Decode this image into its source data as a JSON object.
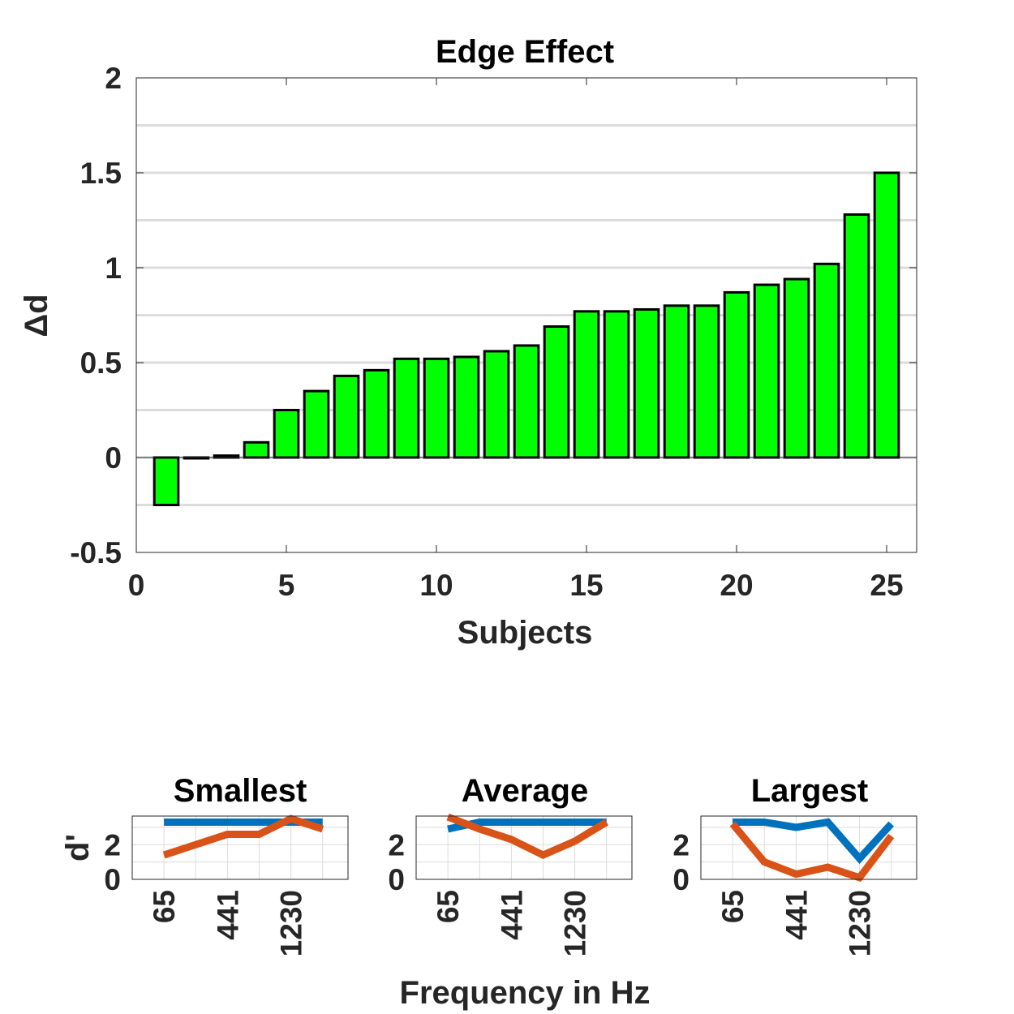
{
  "colors": {
    "bar_fill": "#00ff00",
    "bar_edge": "#000000",
    "grid": "#dcdcdc",
    "series_blue": "#0072bd",
    "series_orange": "#d95319",
    "text": "#262626"
  },
  "figure": {
    "shared_xlabel": "Frequency in Hz"
  },
  "chart_data": [
    {
      "type": "bar",
      "title": "Edge Effect",
      "xlabel": "Subjects",
      "ylabel": "Δd",
      "xlim": [
        0,
        26
      ],
      "ylim": [
        -0.5,
        2
      ],
      "xticks": [
        0,
        5,
        10,
        15,
        20,
        25
      ],
      "xtick_labels": [
        "0",
        "5",
        "10",
        "15",
        "20",
        "25"
      ],
      "yticks": [
        -0.5,
        0,
        0.5,
        1,
        1.5,
        2
      ],
      "ytick_labels": [
        "-0.5",
        "0",
        "0.5",
        "1",
        "1.5",
        "2"
      ],
      "grid": "horizontal",
      "x": [
        1,
        2,
        3,
        4,
        5,
        6,
        7,
        8,
        9,
        10,
        11,
        12,
        13,
        14,
        15,
        16,
        17,
        18,
        19,
        20,
        21,
        22,
        23,
        24,
        25
      ],
      "values": [
        -0.25,
        0.0,
        0.01,
        0.08,
        0.25,
        0.35,
        0.43,
        0.46,
        0.52,
        0.52,
        0.53,
        0.56,
        0.59,
        0.69,
        0.77,
        0.77,
        0.78,
        0.8,
        0.8,
        0.87,
        0.91,
        0.94,
        1.02,
        1.28,
        1.5
      ]
    },
    {
      "type": "line",
      "title": "Smallest",
      "ylabel": "d'",
      "x": [
        1,
        2,
        3,
        4,
        5,
        6
      ],
      "xtick_labels": [
        "65",
        "441",
        "1230"
      ],
      "ylim": [
        0,
        3.5
      ],
      "yticks": [
        "0",
        "2"
      ],
      "grid": "both",
      "series": [
        {
          "color": "blue",
          "values": [
            3.3,
            3.3,
            3.3,
            3.3,
            3.3,
            3.3
          ]
        },
        {
          "color": "orange",
          "values": [
            1.4,
            2.0,
            2.6,
            2.6,
            3.5,
            2.9
          ]
        }
      ]
    },
    {
      "type": "line",
      "title": "Average",
      "x": [
        1,
        2,
        3,
        4,
        5,
        6
      ],
      "xtick_labels": [
        "65",
        "441",
        "1230"
      ],
      "ylim": [
        0,
        3.5
      ],
      "yticks": [
        "0",
        "2"
      ],
      "grid": "both",
      "series": [
        {
          "color": "blue",
          "values": [
            2.9,
            3.3,
            3.3,
            3.3,
            3.3,
            3.3
          ]
        },
        {
          "color": "orange",
          "values": [
            3.6,
            2.9,
            2.3,
            1.4,
            2.2,
            3.3
          ]
        }
      ]
    },
    {
      "type": "line",
      "title": "Largest",
      "x": [
        1,
        2,
        3,
        4,
        5,
        6
      ],
      "xtick_labels": [
        "65",
        "441",
        "1230"
      ],
      "ylim": [
        0,
        3.5
      ],
      "yticks": [
        "0",
        "2"
      ],
      "grid": "both",
      "series": [
        {
          "color": "blue",
          "values": [
            3.3,
            3.3,
            3.0,
            3.3,
            1.2,
            3.2
          ]
        },
        {
          "color": "orange",
          "values": [
            3.2,
            1.0,
            0.3,
            0.7,
            0.1,
            2.5
          ]
        }
      ]
    }
  ]
}
